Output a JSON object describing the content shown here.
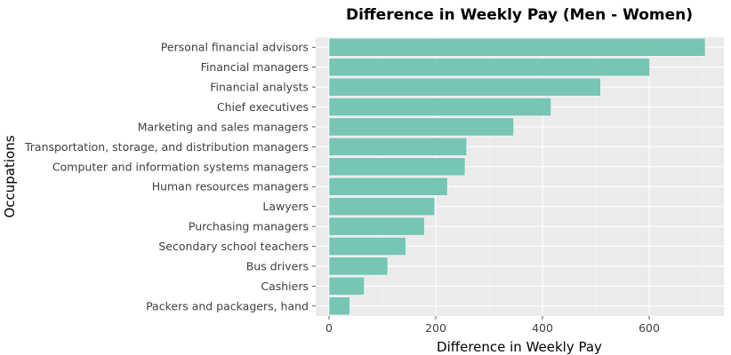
{
  "chart_data": {
    "type": "bar",
    "orientation": "horizontal",
    "title": "Difference in Weekly Pay (Men - Women)",
    "xlabel": "Difference in Weekly Pay",
    "ylabel": "Occupations",
    "xlim": [
      -25,
      740
    ],
    "x_ticks": [
      0,
      200,
      400,
      600
    ],
    "grid": true,
    "colors": {
      "bar": "#76c5b5",
      "panel": "#ebebeb",
      "grid_major": "#ffffff",
      "grid_minor": "#f5f5f5"
    },
    "categories": [
      "Personal financial advisors",
      "Financial managers",
      "Financial analysts",
      "Chief executives",
      "Marketing and sales managers",
      "Transportation, storage, and distribution managers",
      "Computer and information systems managers",
      "Human resources managers",
      "Lawyers",
      "Purchasing managers",
      "Secondary school teachers",
      "Bus drivers",
      "Cashiers",
      "Packers and packagers, hand"
    ],
    "values": [
      705,
      601,
      509,
      416,
      346,
      258,
      255,
      222,
      198,
      179,
      144,
      110,
      66,
      39
    ]
  }
}
